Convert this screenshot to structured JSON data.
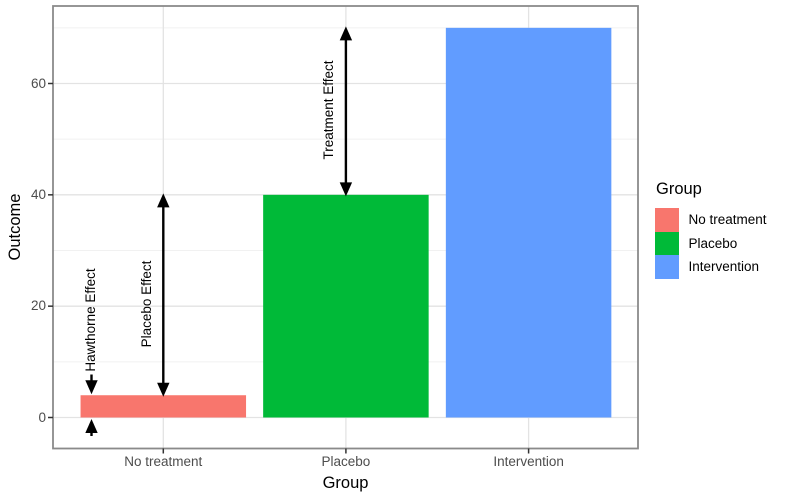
{
  "chart_data": {
    "type": "bar",
    "title": "",
    "categories": [
      "No treatment",
      "Placebo",
      "Intervention"
    ],
    "values": [
      4,
      40,
      70
    ],
    "colors": [
      "#F8766D",
      "#00BA38",
      "#619CFF"
    ],
    "xlabel": "Group",
    "ylabel": "Outcome",
    "yticks": [
      0,
      20,
      40,
      60
    ],
    "ytick_labels": [
      "0",
      "20",
      "40",
      "60"
    ],
    "minor_gridlines": [
      10,
      30,
      50,
      70
    ],
    "ylim": [
      -5.7,
      74
    ],
    "grid": "horizontal major+minor, vertical major at category centers",
    "legend": {
      "title": "Group",
      "position": "right",
      "entries": [
        {
          "label": "No treatment",
          "color": "#F8766D"
        },
        {
          "label": "Placebo",
          "color": "#00BA38"
        },
        {
          "label": "Intervention",
          "color": "#619CFF"
        }
      ]
    },
    "annotations": [
      {
        "label": "Hawthorne Effect",
        "from": 0,
        "to": 4,
        "style": "converging-arrows"
      },
      {
        "label": "Placebo Effect",
        "from": 4,
        "to": 40,
        "style": "double-arrow"
      },
      {
        "label": "Treatment Effect",
        "from": 40,
        "to": 70,
        "style": "double-arrow"
      }
    ],
    "theme": {
      "background": "#FFFFFF",
      "panel_border": "#8A8A8A",
      "grid_major": "#E3E3E3",
      "grid_minor": "#F1F1F1",
      "tick_color": "#333333",
      "axis_text_color": "#4D4D4D",
      "text_color": "#000000",
      "arrow_color": "#000000"
    }
  }
}
